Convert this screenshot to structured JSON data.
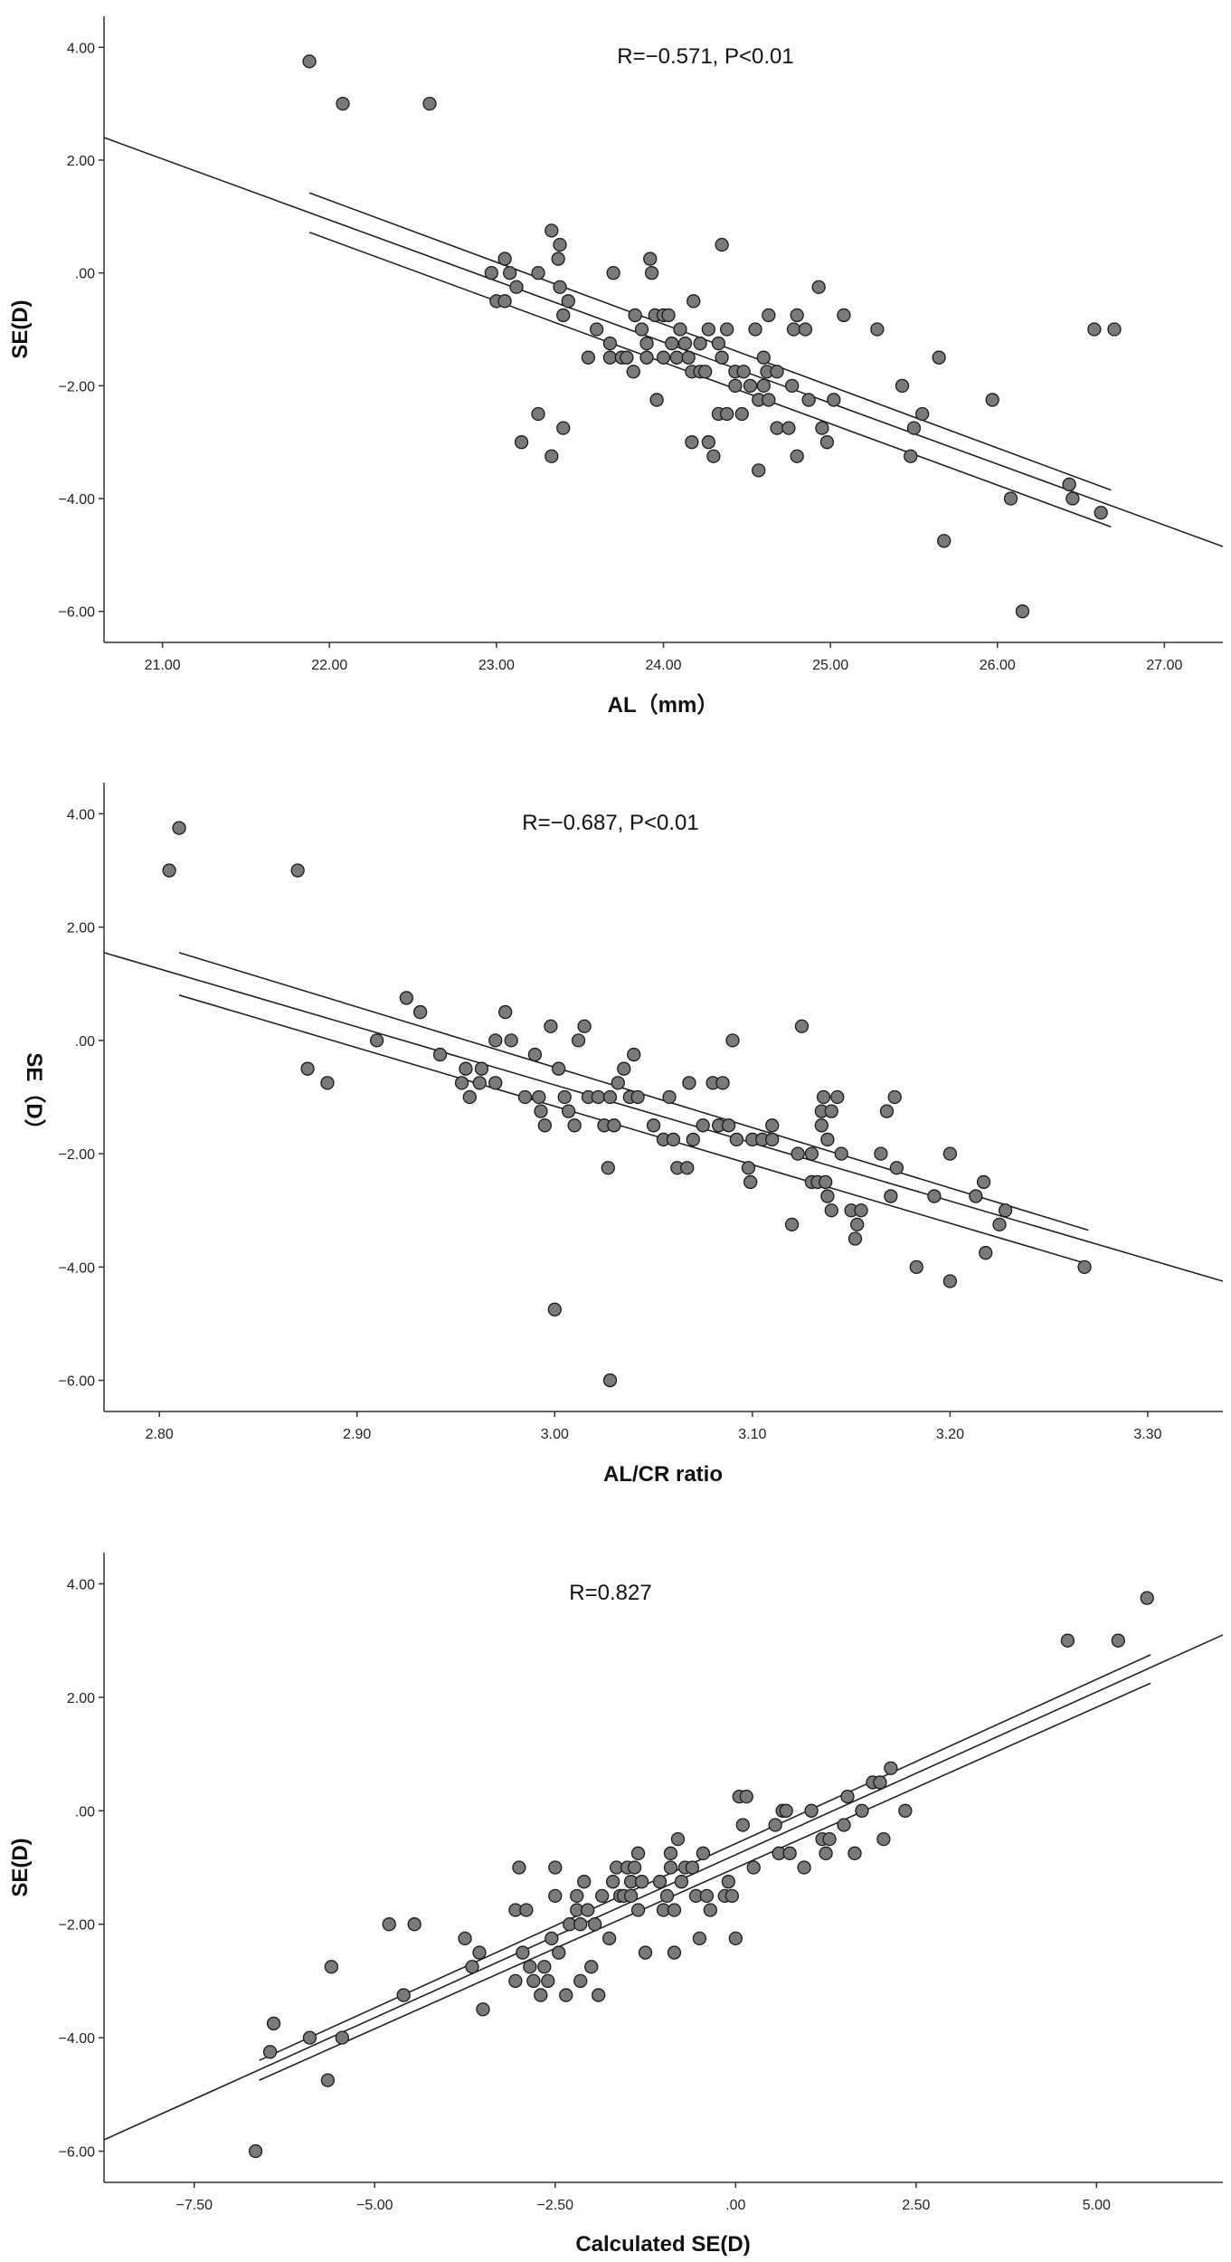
{
  "chart_data": [
    {
      "type": "scatter",
      "title": "",
      "annotation": "R=−0.571, P<0.01",
      "xlabel": "AL（mm）",
      "ylabel": "SE(D)",
      "xlim": [
        20.65,
        27.35
      ],
      "ylim": [
        -6.55,
        4.55
      ],
      "x_ticks": [
        "21.00",
        "22.00",
        "23.00",
        "24.00",
        "25.00",
        "26.00",
        "27.00"
      ],
      "y_ticks": [
        "4.00",
        "2.00",
        ".00",
        "−2.00",
        "−4.00",
        "−6.00"
      ],
      "fit_line": {
        "x": [
          20.65,
          27.35
        ],
        "y": [
          2.4,
          -4.85
        ]
      },
      "ci_lower": {
        "x": [
          21.88,
          26.68
        ],
        "y": [
          0.72,
          -4.5
        ]
      },
      "ci_upper": {
        "x": [
          21.88,
          26.68
        ],
        "y": [
          1.42,
          -3.85
        ]
      },
      "points": [
        [
          21.88,
          3.75
        ],
        [
          22.08,
          3.0
        ],
        [
          22.6,
          3.0
        ],
        [
          22.97,
          0.0
        ],
        [
          23.0,
          -0.5
        ],
        [
          23.05,
          0.25
        ],
        [
          23.05,
          -0.5
        ],
        [
          23.08,
          0.0
        ],
        [
          23.12,
          -0.25
        ],
        [
          23.15,
          -3.0
        ],
        [
          23.25,
          0.0
        ],
        [
          23.25,
          -2.5
        ],
        [
          23.33,
          0.75
        ],
        [
          23.33,
          -3.25
        ],
        [
          23.37,
          0.25
        ],
        [
          23.38,
          0.5
        ],
        [
          23.38,
          -0.25
        ],
        [
          23.4,
          -0.75
        ],
        [
          23.4,
          -2.75
        ],
        [
          23.43,
          -0.5
        ],
        [
          23.55,
          -1.5
        ],
        [
          23.6,
          -1.0
        ],
        [
          23.68,
          -1.25
        ],
        [
          23.68,
          -1.5
        ],
        [
          23.7,
          0.0
        ],
        [
          23.75,
          -1.5
        ],
        [
          23.78,
          -1.5
        ],
        [
          23.82,
          -1.75
        ],
        [
          23.83,
          -0.75
        ],
        [
          23.87,
          -1.0
        ],
        [
          23.9,
          -1.25
        ],
        [
          23.9,
          -1.5
        ],
        [
          23.92,
          0.25
        ],
        [
          23.93,
          0.0
        ],
        [
          23.95,
          -0.75
        ],
        [
          23.96,
          -2.25
        ],
        [
          24.0,
          -0.75
        ],
        [
          24.0,
          -1.5
        ],
        [
          24.03,
          -0.75
        ],
        [
          24.05,
          -1.25
        ],
        [
          24.08,
          -1.5
        ],
        [
          24.1,
          -1.0
        ],
        [
          24.13,
          -1.25
        ],
        [
          24.15,
          -1.5
        ],
        [
          24.17,
          -3.0
        ],
        [
          24.17,
          -1.75
        ],
        [
          24.18,
          -0.5
        ],
        [
          24.22,
          -1.25
        ],
        [
          24.22,
          -1.75
        ],
        [
          24.25,
          -1.75
        ],
        [
          24.27,
          -1.0
        ],
        [
          24.27,
          -3.0
        ],
        [
          24.3,
          -3.25
        ],
        [
          24.33,
          -1.25
        ],
        [
          24.33,
          -2.5
        ],
        [
          24.35,
          -1.5
        ],
        [
          24.35,
          0.5
        ],
        [
          24.38,
          -1.0
        ],
        [
          24.38,
          -2.5
        ],
        [
          24.43,
          -1.75
        ],
        [
          24.43,
          -2.0
        ],
        [
          24.47,
          -2.5
        ],
        [
          24.48,
          -1.75
        ],
        [
          24.52,
          -2.0
        ],
        [
          24.55,
          -1.0
        ],
        [
          24.57,
          -3.5
        ],
        [
          24.57,
          -2.25
        ],
        [
          24.6,
          -2.0
        ],
        [
          24.6,
          -1.5
        ],
        [
          24.62,
          -1.75
        ],
        [
          24.63,
          -2.25
        ],
        [
          24.63,
          -0.75
        ],
        [
          24.68,
          -1.75
        ],
        [
          24.68,
          -2.75
        ],
        [
          24.75,
          -2.75
        ],
        [
          24.77,
          -2.0
        ],
        [
          24.78,
          -1.0
        ],
        [
          24.8,
          -0.75
        ],
        [
          24.8,
          -3.25
        ],
        [
          24.85,
          -1.0
        ],
        [
          24.87,
          -2.25
        ],
        [
          24.93,
          -0.25
        ],
        [
          24.95,
          -2.75
        ],
        [
          24.98,
          -3.0
        ],
        [
          25.02,
          -2.25
        ],
        [
          25.08,
          -0.75
        ],
        [
          25.28,
          -1.0
        ],
        [
          25.43,
          -2.0
        ],
        [
          25.48,
          -3.25
        ],
        [
          25.5,
          -2.75
        ],
        [
          25.55,
          -2.5
        ],
        [
          25.65,
          -1.5
        ],
        [
          25.68,
          -4.75
        ],
        [
          25.97,
          -2.25
        ],
        [
          26.08,
          -4.0
        ],
        [
          26.15,
          -6.0
        ],
        [
          26.43,
          -3.75
        ],
        [
          26.45,
          -4.0
        ],
        [
          26.58,
          -1.0
        ],
        [
          26.62,
          -4.25
        ],
        [
          26.7,
          -1.0
        ]
      ]
    },
    {
      "type": "scatter",
      "title": "",
      "annotation": "R=−0.687, P<0.01",
      "xlabel": "AL/CR ratio",
      "ylabel": "SE（D）",
      "xlim": [
        2.772,
        3.338
      ],
      "ylim": [
        -6.55,
        4.55
      ],
      "x_ticks": [
        "2.80",
        "2.90",
        "3.00",
        "3.10",
        "3.20",
        "3.30"
      ],
      "y_ticks": [
        "4.00",
        "2.00",
        ".00",
        "−2.00",
        "−4.00",
        "−6.00"
      ],
      "fit_line": {
        "x": [
          2.772,
          3.338
        ],
        "y": [
          1.55,
          -4.25
        ]
      },
      "ci_lower": {
        "x": [
          2.81,
          3.27
        ],
        "y": [
          0.8,
          -3.95
        ]
      },
      "ci_upper": {
        "x": [
          2.81,
          3.27
        ],
        "y": [
          1.55,
          -3.35
        ]
      },
      "points": [
        [
          2.805,
          3.0
        ],
        [
          2.81,
          3.75
        ],
        [
          2.87,
          3.0
        ],
        [
          2.875,
          -0.5
        ],
        [
          2.885,
          -0.75
        ],
        [
          2.91,
          0.0
        ],
        [
          2.925,
          0.75
        ],
        [
          2.932,
          0.5
        ],
        [
          2.942,
          -0.25
        ],
        [
          2.953,
          -0.75
        ],
        [
          2.955,
          -0.5
        ],
        [
          2.957,
          -1.0
        ],
        [
          2.962,
          -0.75
        ],
        [
          2.963,
          -0.5
        ],
        [
          2.97,
          0.0
        ],
        [
          2.97,
          -0.75
        ],
        [
          2.975,
          0.5
        ],
        [
          2.978,
          0.0
        ],
        [
          2.985,
          -1.0
        ],
        [
          2.99,
          -0.25
        ],
        [
          2.992,
          -1.0
        ],
        [
          2.993,
          -1.25
        ],
        [
          2.995,
          -1.5
        ],
        [
          2.998,
          0.25
        ],
        [
          3.0,
          -4.75
        ],
        [
          3.002,
          -0.5
        ],
        [
          3.005,
          -1.0
        ],
        [
          3.007,
          -1.25
        ],
        [
          3.01,
          -1.5
        ],
        [
          3.012,
          0.0
        ],
        [
          3.015,
          0.25
        ],
        [
          3.017,
          -1.0
        ],
        [
          3.022,
          -1.0
        ],
        [
          3.025,
          -1.5
        ],
        [
          3.027,
          -2.25
        ],
        [
          3.028,
          -6.0
        ],
        [
          3.028,
          -1.0
        ],
        [
          3.03,
          -1.5
        ],
        [
          3.032,
          -0.75
        ],
        [
          3.035,
          -0.5
        ],
        [
          3.038,
          -1.0
        ],
        [
          3.04,
          -0.25
        ],
        [
          3.042,
          -1.0
        ],
        [
          3.05,
          -1.5
        ],
        [
          3.055,
          -1.75
        ],
        [
          3.058,
          -1.0
        ],
        [
          3.06,
          -1.75
        ],
        [
          3.062,
          -2.25
        ],
        [
          3.067,
          -2.25
        ],
        [
          3.068,
          -0.75
        ],
        [
          3.07,
          -1.75
        ],
        [
          3.075,
          -1.5
        ],
        [
          3.08,
          -0.75
        ],
        [
          3.083,
          -1.5
        ],
        [
          3.085,
          -0.75
        ],
        [
          3.088,
          -1.5
        ],
        [
          3.09,
          0.0
        ],
        [
          3.092,
          -1.75
        ],
        [
          3.098,
          -2.25
        ],
        [
          3.099,
          -2.5
        ],
        [
          3.1,
          -1.75
        ],
        [
          3.105,
          -1.75
        ],
        [
          3.11,
          -1.5
        ],
        [
          3.11,
          -1.75
        ],
        [
          3.12,
          -3.25
        ],
        [
          3.123,
          -2.0
        ],
        [
          3.125,
          0.25
        ],
        [
          3.13,
          -2.5
        ],
        [
          3.13,
          -2.0
        ],
        [
          3.133,
          -2.5
        ],
        [
          3.135,
          -1.25
        ],
        [
          3.135,
          -1.5
        ],
        [
          3.136,
          -1.0
        ],
        [
          3.137,
          -2.5
        ],
        [
          3.138,
          -2.75
        ],
        [
          3.138,
          -1.75
        ],
        [
          3.14,
          -3.0
        ],
        [
          3.14,
          -1.25
        ],
        [
          3.143,
          -1.0
        ],
        [
          3.145,
          -2.0
        ],
        [
          3.15,
          -3.0
        ],
        [
          3.152,
          -3.5
        ],
        [
          3.153,
          -3.25
        ],
        [
          3.155,
          -3.0
        ],
        [
          3.165,
          -2.0
        ],
        [
          3.168,
          -1.25
        ],
        [
          3.17,
          -2.75
        ],
        [
          3.172,
          -1.0
        ],
        [
          3.173,
          -2.25
        ],
        [
          3.183,
          -4.0
        ],
        [
          3.192,
          -2.75
        ],
        [
          3.2,
          -4.25
        ],
        [
          3.2,
          -2.0
        ],
        [
          3.213,
          -2.75
        ],
        [
          3.217,
          -2.5
        ],
        [
          3.218,
          -3.75
        ],
        [
          3.225,
          -3.25
        ],
        [
          3.228,
          -3.0
        ],
        [
          3.268,
          -4.0
        ]
      ]
    },
    {
      "type": "scatter",
      "title": "",
      "annotation": "R=0.827",
      "xlabel": "Calculated SE(D)",
      "ylabel": "SE(D)",
      "xlim": [
        -8.75,
        6.75
      ],
      "ylim": [
        -6.55,
        4.55
      ],
      "x_ticks": [
        "−7.50",
        "−5.00",
        "−2.50",
        ".00",
        "2.50",
        "5.00"
      ],
      "y_ticks": [
        "4.00",
        "2.00",
        ".00",
        "−2.00",
        "−4.00",
        "−6.00"
      ],
      "fit_line": {
        "x": [
          -8.75,
          6.75
        ],
        "y": [
          -5.8,
          3.1
        ]
      },
      "ci_lower": {
        "x": [
          -6.6,
          5.75
        ],
        "y": [
          -4.75,
          2.25
        ]
      },
      "ci_upper": {
        "x": [
          -6.6,
          5.75
        ],
        "y": [
          -4.4,
          2.75
        ]
      },
      "points": [
        [
          -6.65,
          -6.0
        ],
        [
          -6.45,
          -4.25
        ],
        [
          -6.4,
          -3.75
        ],
        [
          -5.9,
          -4.0
        ],
        [
          -5.65,
          -4.75
        ],
        [
          -5.6,
          -2.75
        ],
        [
          -5.45,
          -4.0
        ],
        [
          -4.8,
          -2.0
        ],
        [
          -4.6,
          -3.25
        ],
        [
          -4.45,
          -2.0
        ],
        [
          -3.75,
          -2.25
        ],
        [
          -3.65,
          -2.75
        ],
        [
          -3.55,
          -2.5
        ],
        [
          -3.5,
          -3.5
        ],
        [
          -3.05,
          -3.0
        ],
        [
          -3.05,
          -1.75
        ],
        [
          -3.0,
          -1.0
        ],
        [
          -2.95,
          -2.5
        ],
        [
          -2.9,
          -1.75
        ],
        [
          -2.85,
          -2.75
        ],
        [
          -2.8,
          -3.0
        ],
        [
          -2.7,
          -3.25
        ],
        [
          -2.65,
          -2.75
        ],
        [
          -2.6,
          -3.0
        ],
        [
          -2.55,
          -2.25
        ],
        [
          -2.5,
          -1.5
        ],
        [
          -2.5,
          -1.0
        ],
        [
          -2.45,
          -2.5
        ],
        [
          -2.35,
          -3.25
        ],
        [
          -2.3,
          -2.0
        ],
        [
          -2.2,
          -1.75
        ],
        [
          -2.2,
          -1.5
        ],
        [
          -2.15,
          -2.0
        ],
        [
          -2.15,
          -3.0
        ],
        [
          -2.1,
          -1.25
        ],
        [
          -2.05,
          -1.75
        ],
        [
          -2.0,
          -2.75
        ],
        [
          -1.95,
          -2.0
        ],
        [
          -1.9,
          -3.25
        ],
        [
          -1.85,
          -1.5
        ],
        [
          -1.75,
          -2.25
        ],
        [
          -1.7,
          -1.25
        ],
        [
          -1.65,
          -1.0
        ],
        [
          -1.6,
          -1.5
        ],
        [
          -1.55,
          -1.5
        ],
        [
          -1.5,
          -1.0
        ],
        [
          -1.45,
          -1.25
        ],
        [
          -1.45,
          -1.5
        ],
        [
          -1.4,
          -1.0
        ],
        [
          -1.35,
          -0.75
        ],
        [
          -1.35,
          -1.75
        ],
        [
          -1.3,
          -1.25
        ],
        [
          -1.25,
          -2.5
        ],
        [
          -1.05,
          -1.25
        ],
        [
          -1.0,
          -1.75
        ],
        [
          -0.95,
          -1.5
        ],
        [
          -0.9,
          -0.75
        ],
        [
          -0.9,
          -1.0
        ],
        [
          -0.85,
          -2.5
        ],
        [
          -0.85,
          -1.75
        ],
        [
          -0.8,
          -0.5
        ],
        [
          -0.75,
          -1.25
        ],
        [
          -0.7,
          -1.0
        ],
        [
          -0.6,
          -1.0
        ],
        [
          -0.55,
          -1.5
        ],
        [
          -0.5,
          -2.25
        ],
        [
          -0.45,
          -0.75
        ],
        [
          -0.4,
          -1.5
        ],
        [
          -0.35,
          -1.75
        ],
        [
          -0.15,
          -1.5
        ],
        [
          -0.1,
          -1.25
        ],
        [
          -0.05,
          -1.5
        ],
        [
          0.0,
          -2.25
        ],
        [
          0.05,
          0.25
        ],
        [
          0.1,
          -0.25
        ],
        [
          0.15,
          0.25
        ],
        [
          0.25,
          -1.0
        ],
        [
          0.55,
          -0.25
        ],
        [
          0.6,
          -0.75
        ],
        [
          0.65,
          0.0
        ],
        [
          0.7,
          0.0
        ],
        [
          0.75,
          -0.75
        ],
        [
          0.95,
          -1.0
        ],
        [
          1.05,
          0.0
        ],
        [
          1.2,
          -0.5
        ],
        [
          1.25,
          -0.75
        ],
        [
          1.3,
          -0.5
        ],
        [
          1.5,
          -0.25
        ],
        [
          1.55,
          0.25
        ],
        [
          1.65,
          -0.75
        ],
        [
          1.75,
          0.0
        ],
        [
          1.9,
          0.5
        ],
        [
          2.0,
          0.5
        ],
        [
          2.05,
          -0.5
        ],
        [
          2.15,
          0.75
        ],
        [
          2.35,
          0.0
        ],
        [
          4.6,
          3.0
        ],
        [
          5.3,
          3.0
        ],
        [
          5.7,
          3.75
        ]
      ]
    }
  ]
}
